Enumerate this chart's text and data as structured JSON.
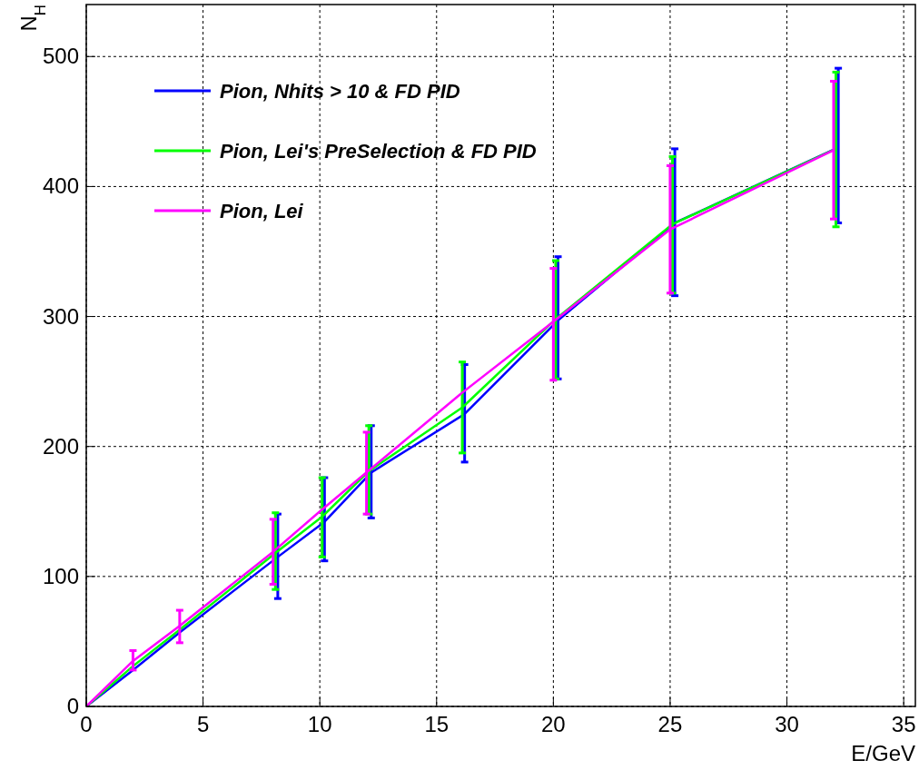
{
  "chart_data": {
    "type": "line",
    "xlabel": "E/GeV",
    "ylabel": "N$_{H}$",
    "xlim": [
      0,
      35.5
    ],
    "ylim": [
      0,
      540
    ],
    "xticks": [
      0,
      5,
      10,
      15,
      20,
      25,
      30,
      35
    ],
    "yticks": [
      0,
      100,
      200,
      300,
      400,
      500
    ],
    "grid": true,
    "legend": "top left",
    "marker": "none",
    "line_style": "solid",
    "series": [
      {
        "name": "Pion, Nhits > 10 & FD PID",
        "color": "#0000ff",
        "x": [
          0,
          2,
          4,
          8.2,
          10.2,
          12.2,
          16.2,
          20.2,
          25.2,
          32.2
        ],
        "values": [
          0,
          28,
          57,
          115,
          142,
          180,
          225,
          297,
          372,
          430
        ],
        "errors": [
          null,
          null,
          null,
          [
            83,
            148
          ],
          [
            112,
            176
          ],
          [
            145,
            216
          ],
          [
            188,
            263
          ],
          [
            252,
            346
          ],
          [
            316,
            429
          ],
          [
            372,
            491
          ]
        ]
      },
      {
        "name": "Pion, Lei's PreSelection & FD PID",
        "color": "#00ff00",
        "x": [
          0,
          2,
          4,
          8.1,
          10.1,
          12.1,
          16.1,
          20.1,
          25.1,
          32.1
        ],
        "values": [
          0,
          31,
          59,
          118,
          146,
          181,
          230,
          298,
          371,
          429
        ],
        "errors": [
          null,
          null,
          null,
          [
            90,
            149
          ],
          [
            115,
            176
          ],
          [
            148,
            216
          ],
          [
            195,
            265
          ],
          [
            252,
            343
          ],
          [
            318,
            423
          ],
          [
            369,
            488
          ]
        ]
      },
      {
        "name": "Pion, Lei",
        "color": "#ff00ff",
        "x": [
          0,
          2,
          4,
          8,
          10,
          12,
          16,
          20,
          25,
          32
        ],
        "values": [
          0,
          35,
          62,
          119,
          150,
          180,
          240,
          296,
          367,
          428
        ],
        "errors": [
          null,
          [
            28,
            43
          ],
          [
            49,
            74
          ],
          [
            94,
            144
          ],
          null,
          [
            148,
            211
          ],
          null,
          [
            251,
            337
          ],
          [
            318,
            416
          ],
          [
            375,
            481
          ]
        ]
      }
    ]
  }
}
